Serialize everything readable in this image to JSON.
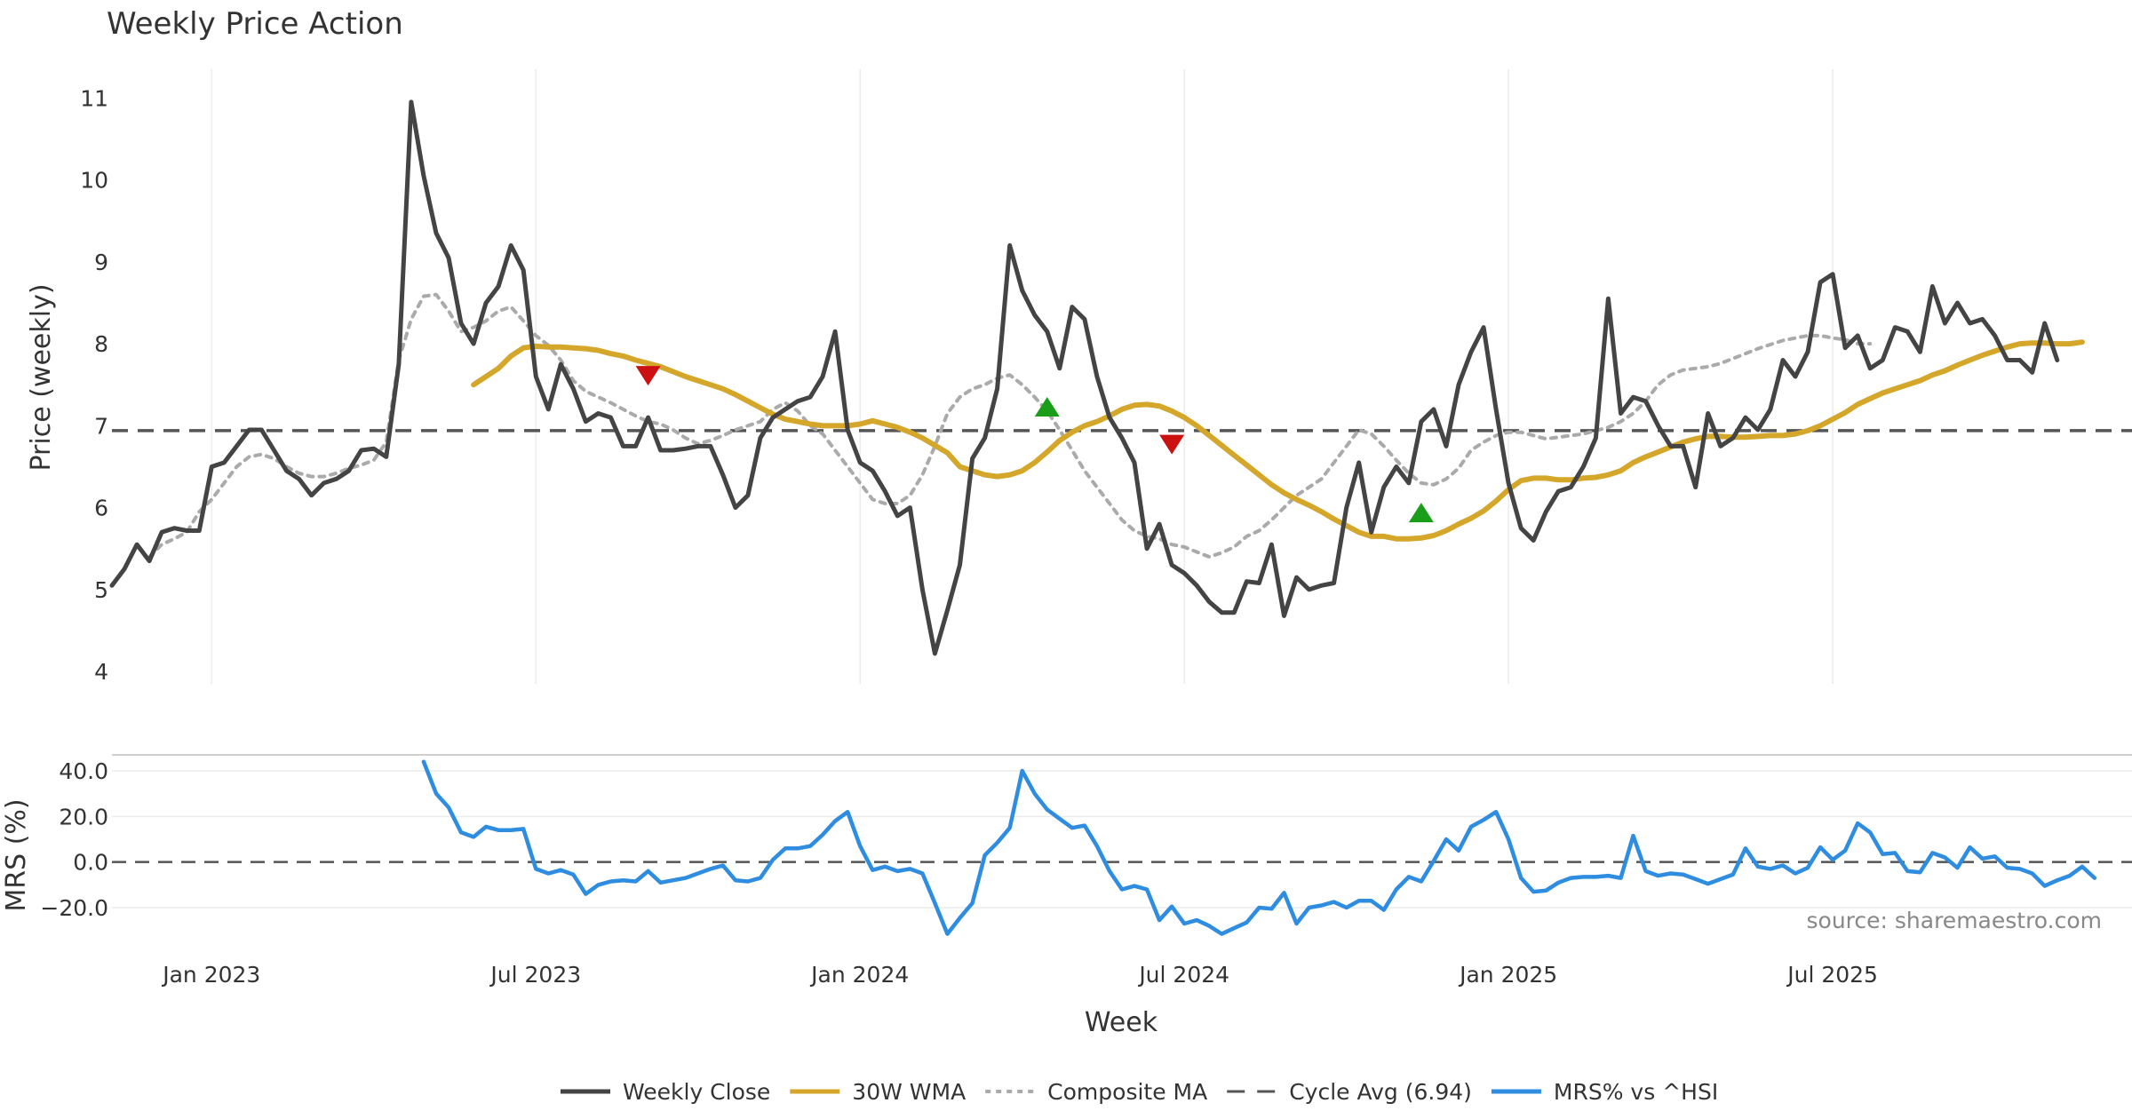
{
  "chart_data": {
    "type": "line",
    "title": "Weekly Price Action",
    "xlabel": "Week",
    "source": "source: sharemaestro.com",
    "x_ticks": [
      "Jan 2023",
      "Jul 2023",
      "Jan 2024",
      "Jul 2024",
      "Jan 2025",
      "Jul 2025"
    ],
    "x_tick_weeks": [
      6,
      32,
      58,
      84,
      110,
      136
    ],
    "x_range": [
      -2,
      160
    ],
    "price_panel": {
      "ylabel": "Price (weekly)",
      "ylim": [
        3.85,
        11.35
      ],
      "y_ticks": [
        4,
        5,
        6,
        7,
        8,
        9,
        10,
        11
      ],
      "cycle_avg": 6.94
    },
    "mrs_panel": {
      "ylabel": "MRS (%)",
      "ylim": [
        -27,
        47
      ],
      "y_ticks": [
        40.0,
        20.0,
        0.0,
        -20.0
      ],
      "y_tick_labels": [
        "40.0",
        "20.0",
        "0.0",
        "−20.0"
      ]
    },
    "series": [
      {
        "name": "Weekly Close",
        "color": "#444444",
        "start": -2,
        "values": [
          5.05,
          5.25,
          5.55,
          5.35,
          5.7,
          5.75,
          5.72,
          5.72,
          6.5,
          6.55,
          6.75,
          6.95,
          6.95,
          6.7,
          6.45,
          6.35,
          6.15,
          6.3,
          6.35,
          6.45,
          6.7,
          6.72,
          6.62,
          7.75,
          10.95,
          10.05,
          9.35,
          9.05,
          8.25,
          8.0,
          8.5,
          8.7,
          9.2,
          8.9,
          7.6,
          7.2,
          7.75,
          7.45,
          7.05,
          7.15,
          7.1,
          6.75,
          6.75,
          7.1,
          6.7,
          6.7,
          6.72,
          6.75,
          6.75,
          6.4,
          6.0,
          6.15,
          6.85,
          7.1,
          7.2,
          7.3,
          7.35,
          7.6,
          8.15,
          6.95,
          6.55,
          6.45,
          6.2,
          5.9,
          6.0,
          5.0,
          4.22,
          4.75,
          5.3,
          6.6,
          6.85,
          7.45,
          9.2,
          8.65,
          8.35,
          8.15,
          7.7,
          8.45,
          8.3,
          7.6,
          7.1,
          6.85,
          6.55,
          5.5,
          5.8,
          5.3,
          5.2,
          5.05,
          4.85,
          4.72,
          4.72,
          5.1,
          5.08,
          5.55,
          4.68,
          5.15,
          5.0,
          5.05,
          5.08,
          6.0,
          6.55,
          5.7,
          6.25,
          6.5,
          6.3,
          7.05,
          7.2,
          6.75,
          7.5,
          7.9,
          8.2,
          7.2,
          6.3,
          5.75,
          5.6,
          5.95,
          6.2,
          6.25,
          6.5,
          6.85,
          8.55,
          7.15,
          7.35,
          7.3,
          7.0,
          6.75,
          6.75,
          6.25,
          7.15,
          6.75,
          6.85,
          7.1,
          6.95,
          7.2,
          7.8,
          7.6,
          7.9,
          8.75,
          8.85,
          7.95,
          8.1,
          7.7,
          7.8,
          8.2,
          8.15,
          7.9,
          8.7,
          8.25,
          8.5,
          8.25,
          8.3,
          8.1,
          7.8,
          7.8,
          7.65,
          8.25,
          7.8
        ]
      },
      {
        "name": "30W WMA",
        "color": "#D4A62A",
        "start": 27,
        "values": [
          7.5,
          7.6,
          7.7,
          7.85,
          7.95,
          7.97,
          7.96,
          7.96,
          7.95,
          7.94,
          7.92,
          7.88,
          7.85,
          7.8,
          7.76,
          7.72,
          7.66,
          7.6,
          7.55,
          7.5,
          7.45,
          7.38,
          7.3,
          7.22,
          7.14,
          7.08,
          7.05,
          7.02,
          7.0,
          7.0,
          7.0,
          7.02,
          7.06,
          7.02,
          6.98,
          6.92,
          6.85,
          6.76,
          6.67,
          6.5,
          6.45,
          6.4,
          6.38,
          6.4,
          6.45,
          6.55,
          6.68,
          6.82,
          6.92,
          7.0,
          7.05,
          7.12,
          7.2,
          7.25,
          7.26,
          7.24,
          7.18,
          7.1,
          7.0,
          6.88,
          6.76,
          6.64,
          6.52,
          6.4,
          6.28,
          6.18,
          6.1,
          6.03,
          5.95,
          5.86,
          5.78,
          5.7,
          5.65,
          5.65,
          5.62,
          5.62,
          5.63,
          5.66,
          5.72,
          5.8,
          5.87,
          5.96,
          6.08,
          6.22,
          6.33,
          6.36,
          6.36,
          6.34,
          6.34,
          6.36,
          6.37,
          6.4,
          6.45,
          6.55,
          6.62,
          6.68,
          6.74,
          6.8,
          6.84,
          6.87,
          6.87,
          6.86,
          6.86,
          6.87,
          6.88,
          6.88,
          6.9,
          6.94,
          7.0,
          7.08,
          7.16,
          7.26,
          7.33,
          7.4,
          7.45,
          7.5,
          7.55,
          7.62,
          7.67,
          7.74,
          7.8,
          7.86,
          7.91,
          7.96,
          8.0,
          8.01,
          8.01,
          8.0,
          8.0,
          8.02
        ]
      },
      {
        "name": "Composite MA",
        "color": "#AAAAAA",
        "start": 1,
        "values": [
          5.4,
          5.55,
          5.62,
          5.7,
          5.95,
          6.1,
          6.3,
          6.5,
          6.62,
          6.65,
          6.6,
          6.5,
          6.42,
          6.38,
          6.38,
          6.42,
          6.48,
          6.52,
          6.58,
          6.8,
          7.8,
          8.3,
          8.58,
          8.6,
          8.4,
          8.15,
          8.2,
          8.28,
          8.4,
          8.45,
          8.28,
          8.1,
          7.98,
          7.8,
          7.55,
          7.42,
          7.35,
          7.28,
          7.2,
          7.12,
          7.05,
          7.02,
          6.95,
          6.85,
          6.78,
          6.82,
          6.88,
          6.95,
          7.0,
          7.05,
          7.2,
          7.28,
          7.18,
          7.0,
          6.9,
          6.7,
          6.5,
          6.3,
          6.1,
          6.05,
          6.05,
          6.15,
          6.4,
          6.75,
          7.15,
          7.35,
          7.45,
          7.5,
          7.58,
          7.62,
          7.5,
          7.35,
          7.18,
          6.95,
          6.7,
          6.45,
          6.25,
          6.05,
          5.85,
          5.72,
          5.65,
          5.62,
          5.55,
          5.52,
          5.46,
          5.4,
          5.45,
          5.52,
          5.65,
          5.72,
          5.85,
          6.0,
          6.15,
          6.25,
          6.35,
          6.55,
          6.75,
          6.95,
          6.9,
          6.75,
          6.58,
          6.42,
          6.3,
          6.28,
          6.35,
          6.48,
          6.7,
          6.8,
          6.88,
          6.92,
          6.92,
          6.88,
          6.84,
          6.86,
          6.88,
          6.9,
          6.94,
          6.98,
          7.05,
          7.15,
          7.3,
          7.5,
          7.62,
          7.68,
          7.7,
          7.72,
          7.76,
          7.82,
          7.88,
          7.94,
          7.99,
          8.04,
          8.07,
          8.1,
          8.1,
          8.07,
          8.05,
          8.0,
          8.0
        ]
      },
      {
        "name": "Cycle Avg (6.94)",
        "color": "#555555",
        "value": 6.94
      },
      {
        "name": "MRS% vs ^HSI",
        "color": "#2E8DE0",
        "start": 23,
        "values": [
          44,
          30,
          24,
          13,
          11,
          15.5,
          14,
          14,
          14.5,
          -3,
          -5,
          -3.5,
          -5.5,
          -14,
          -10,
          -8.5,
          -8,
          -8.5,
          -4,
          -9,
          -8,
          -7,
          -5,
          -3,
          -1.5,
          -8,
          -8.5,
          -7,
          1,
          6,
          6,
          7,
          12,
          18,
          22,
          7,
          -3.5,
          -2,
          -4,
          -3,
          -5,
          -18,
          -31.5,
          -24.5,
          -18,
          3,
          8.5,
          15,
          40,
          30,
          23,
          19,
          15,
          16,
          7,
          -4,
          -12,
          -10.5,
          -12,
          -25.5,
          -19.5,
          -27,
          -25.5,
          -28,
          -31.5,
          -29,
          -26.5,
          -20,
          -20.5,
          -13.5,
          -27,
          -20,
          -19,
          -17.5,
          -20,
          -17,
          -17,
          -21,
          -12,
          -6.5,
          -8.5,
          0.5,
          10,
          5,
          15.5,
          18.5,
          22,
          10,
          -7,
          -13,
          -12.5,
          -9,
          -7,
          -6.5,
          -6.5,
          -6,
          -7,
          11.5,
          -4,
          -6,
          -5,
          -5.5,
          -7.5,
          -9.5,
          -7.5,
          -5.5,
          6,
          -2,
          -3,
          -1.5,
          -5,
          -2.5,
          6.5,
          1,
          5,
          17,
          13,
          3.5,
          4,
          -4,
          -4.5,
          4,
          2,
          -2.5,
          6.5,
          1.5,
          2.5,
          -2.5,
          -3,
          -5,
          -10.5,
          -8,
          -6,
          -2,
          -7
        ]
      }
    ],
    "signals": [
      {
        "type": "sell",
        "week": 41,
        "price": 7.62,
        "color": "#CC1111"
      },
      {
        "type": "buy",
        "week": 73,
        "price": 7.22,
        "color": "#1A9E1A"
      },
      {
        "type": "sell",
        "week": 83,
        "price": 6.78,
        "color": "#CC1111"
      },
      {
        "type": "buy",
        "week": 103,
        "price": 5.93,
        "color": "#1A9E1A"
      }
    ],
    "legend_position": "bottom-center"
  }
}
